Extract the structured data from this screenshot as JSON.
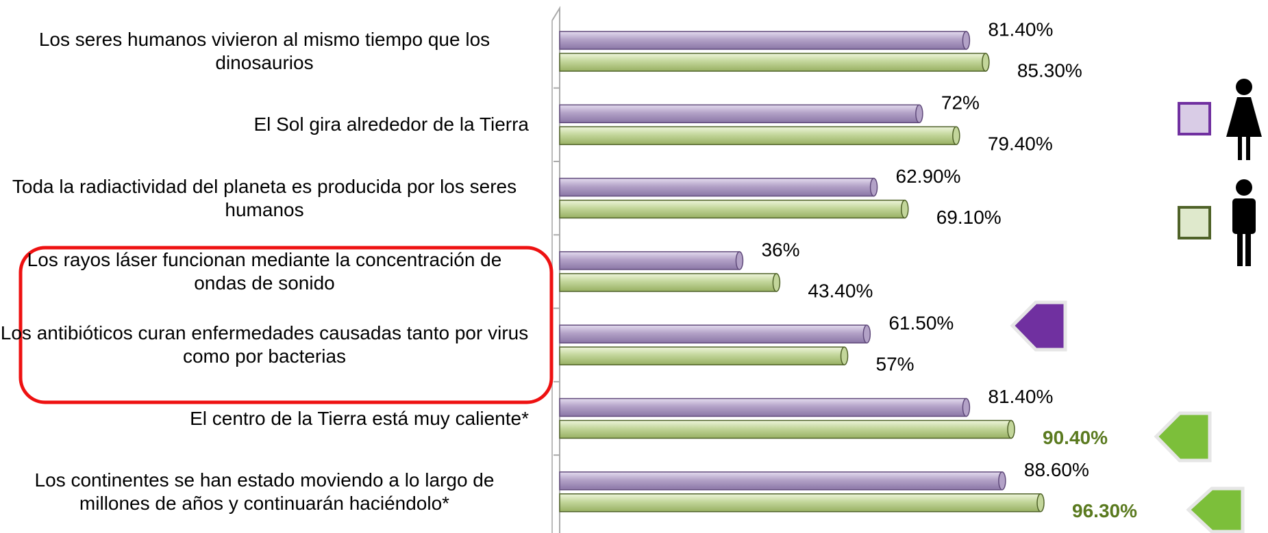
{
  "chart_data": {
    "type": "bar",
    "orientation": "horizontal",
    "categories": [
      "Los seres humanos vivieron al mismo tiempo que los dinosaurios",
      "El Sol gira alrededor de la Tierra",
      "Toda la radiactividad del planeta es producida por los seres humanos",
      "Los rayos láser funcionan mediante la concentración de ondas de sonido",
      "Los antibióticos curan enfermedades causadas tanto por virus como por bacterias",
      "El centro de la Tierra está muy caliente*",
      "Los continentes se han estado moviendo a lo largo de millones de años y continuarán haciéndolo*"
    ],
    "series": [
      {
        "color": "#b3a2c7",
        "values": [
          81.4,
          72,
          62.9,
          36,
          61.5,
          81.4,
          88.6
        ],
        "value_labels": [
          "81.40%",
          "72%",
          "62.90%",
          "36%",
          "61.50%",
          "81.40%",
          "88.60%"
        ]
      },
      {
        "color": "#c3d69b",
        "values": [
          85.3,
          79.4,
          69.1,
          43.4,
          57,
          90.4,
          96.3
        ],
        "value_labels": [
          "85.30%",
          "79.40%",
          "69.10%",
          "43.40%",
          "57%",
          "90.40%",
          "96.30%"
        ]
      }
    ],
    "xlim": [
      0,
      100
    ],
    "emphasis": {
      "series": 1,
      "indices": [
        5,
        6
      ],
      "color": "#5a7a1f"
    }
  }
}
